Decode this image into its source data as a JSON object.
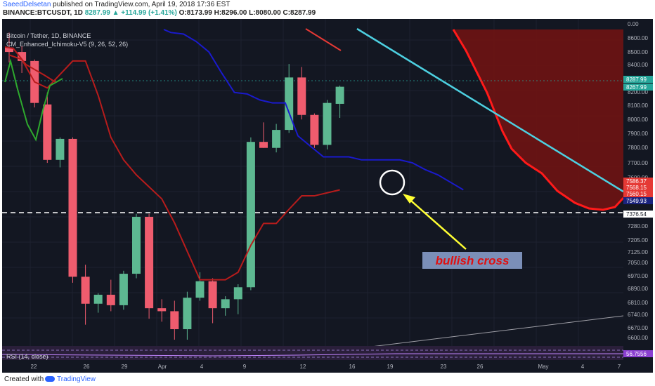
{
  "header": {
    "author": "SaeedDelsetan",
    "published_text": " published on TradingView.com, April 19, 2018 17:36 EST",
    "symbol": "BINANCE:BTCUSDT, 1D",
    "last": "8287.99",
    "change": "▲ +114.99 (+1.41%)",
    "ohlc": "O:8173.99 H:8296.00 L:8080.00 C:8287.99"
  },
  "legend": {
    "pair": "Bitcoin / Tether, 1D, BINANCE",
    "indicator": "CM_Enhanced_Ichimoku-V5 (9, 26, 52, 26)"
  },
  "rsi": {
    "label": "RSI (14, close)",
    "value": "56.7556"
  },
  "annotation": "bullish cross",
  "footer": {
    "created_with": "Created with",
    "brand": "TradingView"
  },
  "chart_data": {
    "type": "candlestick",
    "price_axis": {
      "ticks": [
        "8600.00",
        "8500.00",
        "8400.00",
        "8300.00",
        "8200.00",
        "8100.00",
        "8000.00",
        "7900.00",
        "7800.00",
        "7700.00",
        "7600.00",
        "7376.54",
        "7280.00",
        "7205.00",
        "7125.00",
        "7050.00",
        "6970.00",
        "6890.00",
        "6810.00",
        "6740.00",
        "6670.00",
        "6600.00"
      ],
      "top_label": "0.00",
      "price_tags": [
        {
          "label": "8287.99",
          "color": "#26a69a"
        },
        {
          "label": "8267.99",
          "color": "#26a69a"
        },
        {
          "label": "7586.37",
          "color": "#e53935"
        },
        {
          "label": "7568.15",
          "color": "#e53935"
        },
        {
          "label": "7560.15",
          "color": "#e53935"
        },
        {
          "label": "7549.93",
          "color": "#1a237e"
        },
        {
          "label": "7376.54",
          "color": "#ffffff"
        }
      ]
    },
    "x_labels": [
      "22",
      "26",
      "29",
      "Apr",
      "4",
      "9",
      "12",
      "16",
      "19",
      "23",
      "26",
      "May",
      "4",
      "7"
    ],
    "candles": [
      {
        "o": 8550,
        "h": 8650,
        "l": 8450,
        "c": 8520
      },
      {
        "o": 8520,
        "h": 8560,
        "l": 8380,
        "c": 8460
      },
      {
        "o": 8460,
        "h": 8470,
        "l": 8150,
        "c": 8180
      },
      {
        "o": 8170,
        "h": 8250,
        "l": 7780,
        "c": 7800
      },
      {
        "o": 7800,
        "h": 7950,
        "l": 7750,
        "c": 7940
      },
      {
        "o": 7940,
        "h": 7950,
        "l": 6980,
        "c": 7020
      },
      {
        "o": 7020,
        "h": 7100,
        "l": 6700,
        "c": 6840
      },
      {
        "o": 6840,
        "h": 6910,
        "l": 6780,
        "c": 6900
      },
      {
        "o": 6900,
        "h": 7000,
        "l": 6790,
        "c": 6830
      },
      {
        "o": 6830,
        "h": 7060,
        "l": 6800,
        "c": 7040
      },
      {
        "o": 7040,
        "h": 7440,
        "l": 7010,
        "c": 7420
      },
      {
        "o": 7420,
        "h": 7440,
        "l": 6740,
        "c": 6810
      },
      {
        "o": 6810,
        "h": 6870,
        "l": 6720,
        "c": 6790
      },
      {
        "o": 6790,
        "h": 6860,
        "l": 6600,
        "c": 6670
      },
      {
        "o": 6670,
        "h": 6920,
        "l": 6600,
        "c": 6880
      },
      {
        "o": 6880,
        "h": 7050,
        "l": 6860,
        "c": 6990
      },
      {
        "o": 6990,
        "h": 7010,
        "l": 6710,
        "c": 6810
      },
      {
        "o": 6810,
        "h": 6890,
        "l": 6760,
        "c": 6870
      },
      {
        "o": 6870,
        "h": 6970,
        "l": 6770,
        "c": 6950
      },
      {
        "o": 6950,
        "h": 7950,
        "l": 6930,
        "c": 7920
      },
      {
        "o": 7920,
        "h": 8050,
        "l": 7880,
        "c": 7880
      },
      {
        "o": 7880,
        "h": 8040,
        "l": 7850,
        "c": 8000
      },
      {
        "o": 8000,
        "h": 8440,
        "l": 7980,
        "c": 8350
      },
      {
        "o": 8350,
        "h": 8420,
        "l": 8070,
        "c": 8100
      },
      {
        "o": 8100,
        "h": 8110,
        "l": 7880,
        "c": 7900
      },
      {
        "o": 7900,
        "h": 8200,
        "l": 7870,
        "c": 8180
      },
      {
        "o": 8174,
        "h": 8296,
        "l": 8080,
        "c": 8288
      }
    ],
    "conversion_line": [
      8500,
      8470,
      8320,
      8280,
      8370,
      8460,
      8460,
      8230,
      7950,
      7800,
      7700,
      7620,
      7540,
      7380,
      7190,
      7000,
      7000,
      7000,
      7050,
      7230,
      7376,
      7376,
      7470,
      7560,
      7560,
      7580,
      7600
    ],
    "base_line": [
      8650,
      8640,
      8590,
      8520,
      8380,
      8250,
      8240,
      8200,
      8180,
      8180,
      7960,
      7890,
      7820,
      7820,
      7820,
      7800,
      7800,
      7800,
      7800,
      7780,
      7735,
      7700,
      7650,
      7600
    ]
  }
}
